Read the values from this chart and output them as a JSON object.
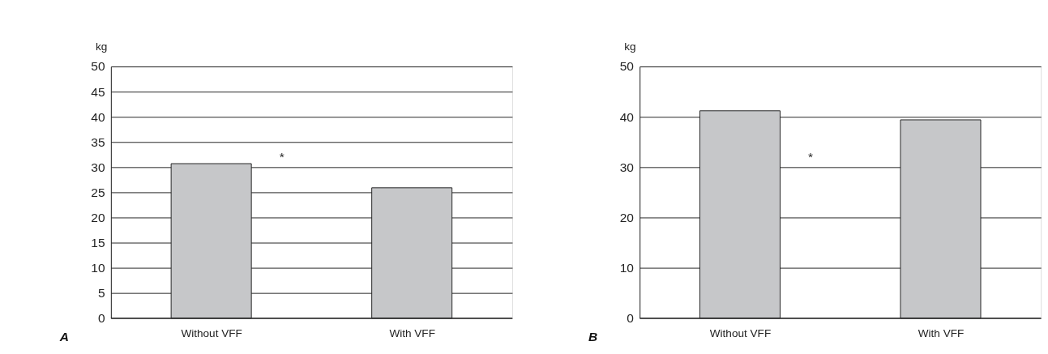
{
  "chart_data": [
    {
      "type": "bar",
      "ylabel": "kg",
      "categories": [
        "Without VFF",
        "With VFF"
      ],
      "values": [
        30.7,
        25.9
      ],
      "color": "#c6c7c9",
      "ylim": [
        0,
        50
      ],
      "yticks": [
        0,
        5,
        10,
        15,
        20,
        25,
        30,
        35,
        40,
        45,
        50
      ],
      "grid": "y",
      "annotations": [
        "A",
        "*"
      ]
    },
    {
      "type": "bar",
      "ylabel": "kg",
      "categories": [
        "Without VFF",
        "With VFF"
      ],
      "values": [
        41.2,
        39.4
      ],
      "color": "#c6c7c9",
      "ylim": [
        0,
        50
      ],
      "yticks": [
        0,
        10,
        20,
        30,
        40,
        50
      ],
      "grid": "y",
      "annotations": [
        "B",
        "*"
      ]
    }
  ]
}
